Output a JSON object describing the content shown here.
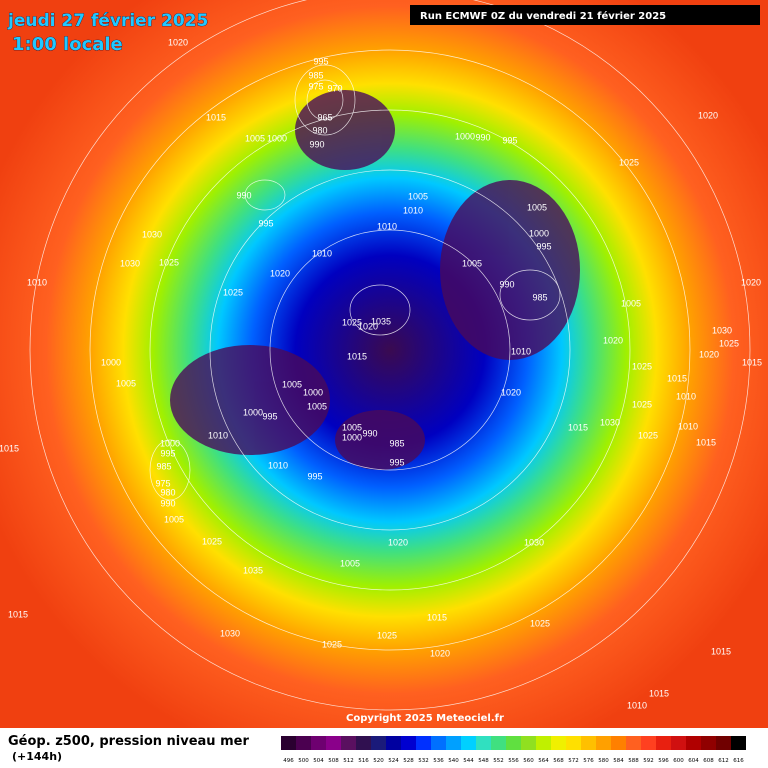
{
  "header": {
    "title": "jeudi 27 février 2025",
    "subtitle": "1:00 locale",
    "run": "Run ECMWF 0Z du vendredi 21 février 2025"
  },
  "map": {
    "isobar_labels": [
      1020,
      1015,
      1005,
      1000,
      995,
      985,
      975,
      970,
      965,
      980,
      990,
      1000,
      990,
      995,
      1005,
      1010,
      1010,
      1010,
      995,
      990,
      1030,
      1030,
      1025,
      1020,
      1025,
      1010,
      1005,
      1000,
      995,
      1005,
      990,
      985,
      1005,
      1020,
      1025,
      1020,
      1030,
      1025,
      1020,
      1015,
      1035,
      1025,
      1020,
      1015,
      1010,
      1020,
      1020,
      1025,
      1015,
      1010,
      1025,
      1030,
      1015,
      1025,
      1010,
      1015,
      1000,
      1005,
      1005,
      1000,
      1005,
      1000,
      995,
      1010,
      1005,
      1000,
      990,
      985,
      995,
      1010,
      995,
      1000,
      995,
      985,
      975,
      980,
      990,
      1005,
      1015,
      1025,
      1020,
      1030,
      1035,
      1005,
      1015,
      1030,
      1015,
      1025,
      1025,
      1025,
      1020,
      1015,
      1015,
      1010
    ],
    "copyright": "Copyright 2025 Meteociel.fr"
  },
  "legend": {
    "title": "Géop. z500, pression niveau mer",
    "lead": "(+144h)",
    "levels": [
      496,
      500,
      504,
      508,
      512,
      516,
      520,
      524,
      528,
      532,
      536,
      540,
      544,
      548,
      552,
      556,
      560,
      564,
      568,
      572,
      576,
      580,
      584,
      588,
      592,
      596,
      600,
      604,
      608,
      612,
      616
    ],
    "colors": [
      "#2a0030",
      "#4b0050",
      "#6e0070",
      "#8a008a",
      "#5a1060",
      "#301050",
      "#1a1a7a",
      "#0000a0",
      "#0000d0",
      "#0030ff",
      "#0070ff",
      "#00a0ff",
      "#00d0ff",
      "#30e0c0",
      "#40e080",
      "#60e040",
      "#90e020",
      "#c0f000",
      "#f0f000",
      "#ffe000",
      "#ffc000",
      "#ffa000",
      "#ff8000",
      "#ff6020",
      "#ff4020",
      "#e82010",
      "#d01010",
      "#b00000",
      "#900000",
      "#700000",
      "#000000"
    ]
  }
}
